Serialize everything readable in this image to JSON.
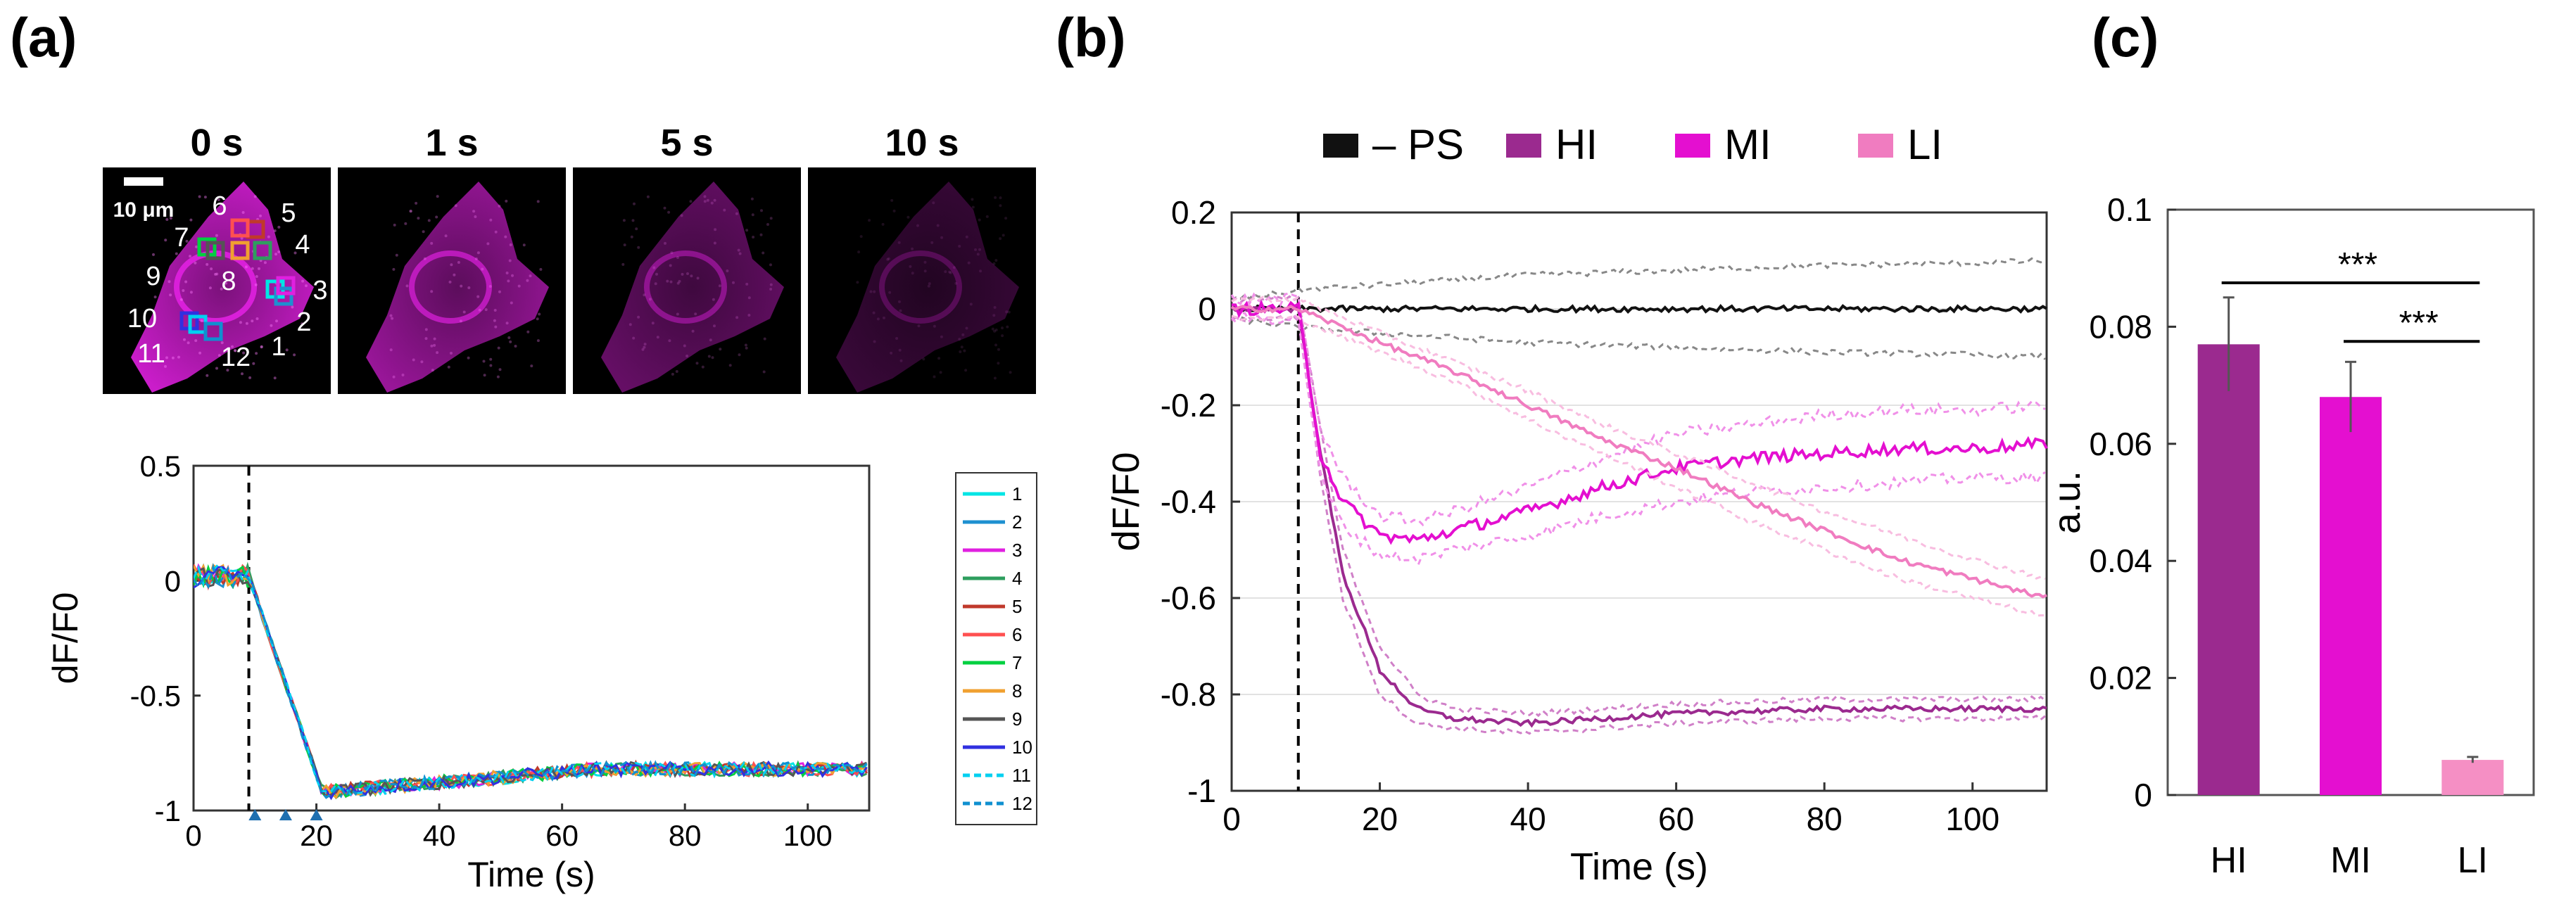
{
  "panel_labels": {
    "a": "(a)",
    "b": "(b)",
    "c": "(c)"
  },
  "micrographs": {
    "times": [
      "0 s",
      "1 s",
      "5 s",
      "10 s"
    ],
    "scale_bar_label": "10 μm",
    "roi_labels": [
      "1",
      "2",
      "3",
      "4",
      "5",
      "6",
      "7",
      "8",
      "9",
      "10",
      "11",
      "12"
    ],
    "colors": {
      "cell": "#e020e0",
      "background": "#000000"
    }
  },
  "chart_data": [
    {
      "id": "a",
      "type": "line",
      "title": "",
      "xlabel": "Time (s)",
      "ylabel": "dF/F0",
      "xlim": [
        0,
        110
      ],
      "ylim": [
        -1,
        0.5
      ],
      "xticks": [
        0,
        20,
        40,
        60,
        80,
        100
      ],
      "yticks": [
        0.5,
        0,
        -0.5,
        -1
      ],
      "ytick_labels": [
        "0.5",
        "0",
        "-0.5",
        "-1"
      ],
      "stimulus_time": 9,
      "arrow_markers_x": [
        10,
        15,
        20
      ],
      "legend": [
        "1",
        "2",
        "3",
        "4",
        "5",
        "6",
        "7",
        "8",
        "9",
        "10",
        "11",
        "12"
      ],
      "legend_position": "right",
      "series": [
        {
          "name": "1",
          "color": "#00e5e5",
          "style": "solid"
        },
        {
          "name": "2",
          "color": "#1e90d0",
          "style": "solid"
        },
        {
          "name": "3",
          "color": "#e020e0",
          "style": "solid"
        },
        {
          "name": "4",
          "color": "#2e9e5e",
          "style": "solid"
        },
        {
          "name": "5",
          "color": "#c0392b",
          "style": "solid"
        },
        {
          "name": "6",
          "color": "#ff5050",
          "style": "solid"
        },
        {
          "name": "7",
          "color": "#00d040",
          "style": "solid"
        },
        {
          "name": "8",
          "color": "#f0a030",
          "style": "solid"
        },
        {
          "name": "9",
          "color": "#555555",
          "style": "solid"
        },
        {
          "name": "10",
          "color": "#3030e0",
          "style": "solid"
        },
        {
          "name": "11",
          "color": "#00d0f0",
          "style": "dashed"
        },
        {
          "name": "12",
          "color": "#1090d0",
          "style": "dashed"
        }
      ],
      "curve_shape": {
        "baseline": 0.02,
        "drop_start": 9,
        "drop_end": 21,
        "minimum": -0.92,
        "plateau": -0.82,
        "noise": 0.03
      }
    },
    {
      "id": "b",
      "type": "line",
      "title": "",
      "xlabel": "Time (s)",
      "ylabel": "dF/F0",
      "xlim": [
        0,
        110
      ],
      "ylim": [
        -1,
        0.2
      ],
      "xticks": [
        0,
        20,
        40,
        60,
        80,
        100
      ],
      "yticks": [
        0.2,
        0,
        -0.2,
        -0.4,
        -0.6,
        -0.8,
        -1
      ],
      "ytick_labels": [
        "0.2",
        "0",
        "-0.2",
        "-0.4",
        "-0.6",
        "-0.8",
        "-1"
      ],
      "stimulus_time": 9,
      "grid": true,
      "legend": [
        "– PS",
        "HI",
        "MI",
        "LI"
      ],
      "legend_position": "top",
      "series": [
        {
          "name": "– PS",
          "color": "#111111",
          "band_color": "#888888",
          "x": [
            0,
            10,
            20,
            40,
            60,
            80,
            100,
            110
          ],
          "y": [
            0,
            0,
            0,
            0,
            0,
            0,
            0,
            0
          ],
          "upper": [
            0.02,
            0.04,
            0.05,
            0.07,
            0.08,
            0.09,
            0.095,
            0.1
          ],
          "lower": [
            -0.02,
            -0.04,
            -0.05,
            -0.07,
            -0.08,
            -0.09,
            -0.095,
            -0.1
          ]
        },
        {
          "name": "HI",
          "color": "#9b2a8f",
          "band_color": "#d080c8",
          "x": [
            0,
            9,
            12,
            15,
            20,
            25,
            30,
            40,
            60,
            80,
            100,
            110
          ],
          "y": [
            0,
            0,
            -0.3,
            -0.55,
            -0.75,
            -0.83,
            -0.85,
            -0.86,
            -0.84,
            -0.83,
            -0.83,
            -0.83
          ],
          "upper": [
            0.02,
            0.02,
            -0.25,
            -0.5,
            -0.7,
            -0.8,
            -0.83,
            -0.84,
            -0.82,
            -0.81,
            -0.81,
            -0.81
          ],
          "lower": [
            -0.02,
            -0.02,
            -0.35,
            -0.6,
            -0.8,
            -0.86,
            -0.87,
            -0.88,
            -0.86,
            -0.85,
            -0.85,
            -0.85
          ]
        },
        {
          "name": "MI",
          "color": "#e40fd0",
          "band_color": "#f090e8",
          "x": [
            0,
            9,
            12,
            15,
            20,
            25,
            30,
            40,
            50,
            60,
            70,
            80,
            90,
            100,
            110
          ],
          "y": [
            0,
            0,
            -0.3,
            -0.4,
            -0.47,
            -0.48,
            -0.46,
            -0.42,
            -0.37,
            -0.33,
            -0.31,
            -0.3,
            -0.29,
            -0.29,
            -0.28
          ],
          "upper": [
            0.02,
            0.02,
            -0.25,
            -0.35,
            -0.43,
            -0.44,
            -0.42,
            -0.37,
            -0.31,
            -0.26,
            -0.24,
            -0.22,
            -0.21,
            -0.21,
            -0.2
          ],
          "lower": [
            -0.02,
            -0.02,
            -0.35,
            -0.45,
            -0.51,
            -0.52,
            -0.5,
            -0.47,
            -0.43,
            -0.4,
            -0.38,
            -0.37,
            -0.36,
            -0.35,
            -0.35
          ]
        },
        {
          "name": "LI",
          "color": "#f07cc0",
          "band_color": "#f8bde0",
          "x": [
            0,
            9,
            20,
            30,
            40,
            50,
            60,
            70,
            80,
            90,
            100,
            110
          ],
          "y": [
            0,
            0,
            -0.07,
            -0.13,
            -0.2,
            -0.27,
            -0.33,
            -0.4,
            -0.46,
            -0.52,
            -0.56,
            -0.6
          ],
          "upper": [
            0.02,
            0.02,
            -0.05,
            -0.11,
            -0.17,
            -0.24,
            -0.3,
            -0.36,
            -0.42,
            -0.47,
            -0.52,
            -0.56
          ],
          "lower": [
            -0.02,
            -0.02,
            -0.09,
            -0.15,
            -0.23,
            -0.3,
            -0.37,
            -0.44,
            -0.5,
            -0.56,
            -0.6,
            -0.64
          ]
        }
      ]
    },
    {
      "id": "c",
      "type": "bar",
      "title": "",
      "xlabel": "",
      "ylabel": "a.u.",
      "ylim": [
        0,
        0.1
      ],
      "yticks": [
        0,
        0.02,
        0.04,
        0.06,
        0.08,
        0.1
      ],
      "ytick_labels": [
        "0",
        "0.02",
        "0.04",
        "0.06",
        "0.08",
        "0.1"
      ],
      "categories": [
        "HI",
        "MI",
        "LI"
      ],
      "values": [
        0.077,
        0.068,
        0.006
      ],
      "errors": [
        0.008,
        0.006,
        0.0005
      ],
      "colors": [
        "#9b2a8f",
        "#e40fd0",
        "#f58fc4"
      ],
      "significance": [
        {
          "from": "HI",
          "to": "LI",
          "label": "***",
          "y": 0.0875
        },
        {
          "from": "MI",
          "to": "LI",
          "label": "***",
          "y": 0.0775
        }
      ]
    }
  ]
}
